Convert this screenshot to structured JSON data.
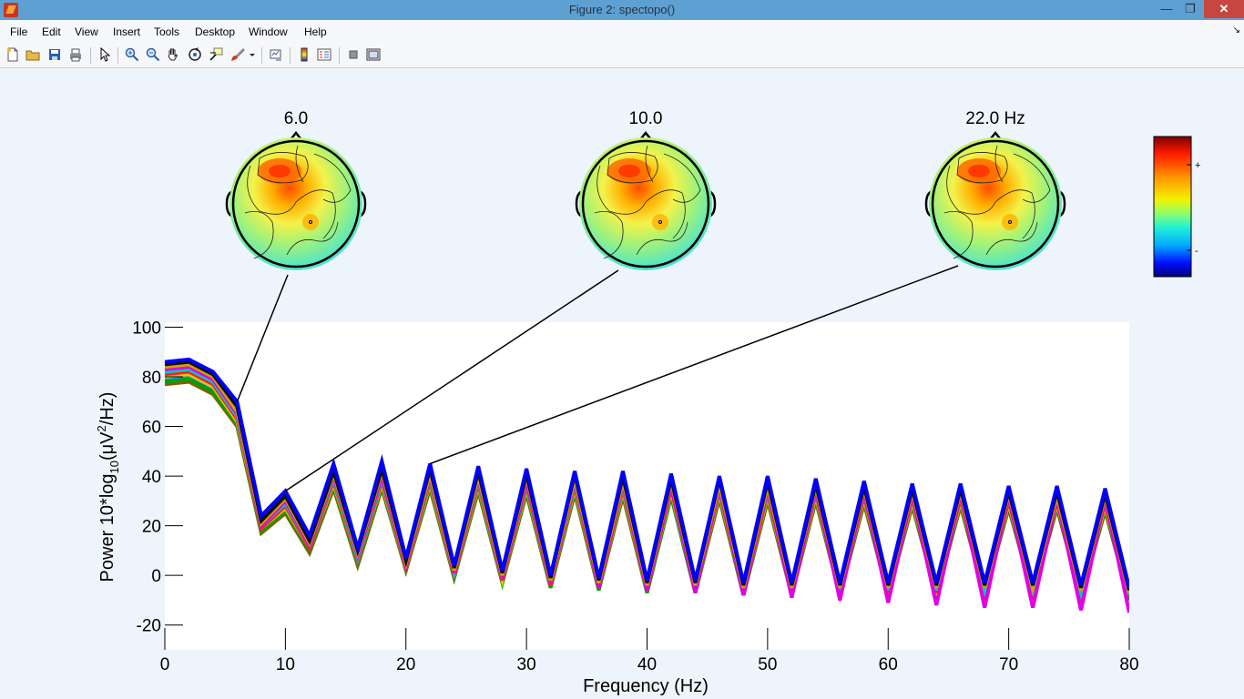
{
  "window": {
    "title": "Figure 2: spectopo()"
  },
  "menu": [
    "File",
    "Edit",
    "View",
    "Insert",
    "Tools",
    "Desktop",
    "Window",
    "Help"
  ],
  "toolbar": [
    "new-figure-icon",
    "open-file-icon",
    "save-icon",
    "print-icon",
    "pointer-icon",
    "zoom-in-icon",
    "zoom-out-icon",
    "pan-hand-icon",
    "rotate-3d-icon",
    "data-cursor-icon",
    "brush-icon",
    "brush-dropdown-icon",
    "link-plot-icon",
    "colorbar-icon",
    "legend-icon",
    "hide-plot-tools-icon",
    "show-plot-tools-icon"
  ],
  "colors": {
    "series": [
      "#0000ff",
      "#101010",
      "#d6a000",
      "#e000e0",
      "#00c8c8",
      "#ff2020",
      "#d7d000",
      "#00a000",
      "#2a7fff",
      "#8a5a00"
    ],
    "topo_outline": "#000000"
  },
  "topomaps": [
    {
      "label": "6.0",
      "freq": 6
    },
    {
      "label": "10.0",
      "freq": 10
    },
    {
      "label": "22.0 Hz",
      "freq": 22
    }
  ],
  "colorbar": {
    "plus_label": "+",
    "minus_label": "-"
  },
  "chart_data": {
    "type": "line",
    "xlabel": "Frequency (Hz)",
    "ylabel": "Power 10*log10(μV2/Hz)",
    "ylabel_parts": {
      "main": "Power 10*log",
      "sub": "10",
      "mid": "(μV",
      "sup": "2",
      "end": "/Hz)"
    },
    "xlim": [
      0,
      80
    ],
    "ylim": [
      -30,
      102
    ],
    "xticks": [
      0,
      10,
      20,
      30,
      40,
      50,
      60,
      70,
      80
    ],
    "yticks": [
      -20,
      0,
      20,
      40,
      60,
      80,
      100
    ],
    "x": [
      0,
      2,
      4,
      6,
      8,
      10,
      12,
      14,
      16,
      18,
      20,
      22,
      24,
      26,
      28,
      30,
      32,
      34,
      36,
      38,
      40,
      42,
      44,
      46,
      48,
      50,
      52,
      54,
      56,
      58,
      60,
      62,
      64,
      66,
      68,
      70,
      72,
      74,
      76,
      78,
      80
    ],
    "series": [
      {
        "values": [
          86,
          87,
          82,
          70,
          24,
          34,
          16,
          45,
          11,
          46,
          7,
          45,
          4,
          44,
          2,
          43,
          0,
          42,
          -1,
          42,
          -2,
          41,
          -2,
          40,
          -3,
          40,
          -3,
          39,
          -3,
          38,
          -3,
          37,
          -3,
          37,
          -3,
          36,
          -3,
          36,
          -4,
          35,
          -5
        ]
      },
      {
        "values": [
          85,
          86,
          81,
          68,
          22,
          32,
          14,
          42,
          10,
          43,
          6,
          43,
          3,
          42,
          1,
          41,
          -1,
          41,
          -2,
          40,
          -3,
          39,
          -3,
          39,
          -4,
          38,
          -4,
          37,
          -4,
          36,
          -4,
          35,
          -4,
          35,
          -4,
          34,
          -4,
          34,
          -5,
          33,
          -6
        ]
      },
      {
        "values": [
          84,
          85,
          80,
          66,
          21,
          31,
          13,
          41,
          9,
          42,
          5,
          41,
          2,
          40,
          0,
          40,
          -2,
          39,
          -3,
          38,
          -4,
          38,
          -4,
          37,
          -5,
          36,
          -5,
          36,
          -5,
          35,
          -5,
          34,
          -5,
          34,
          -5,
          33,
          -5,
          32,
          -6,
          32,
          -7
        ]
      },
      {
        "values": [
          83,
          84,
          79,
          65,
          20,
          30,
          12,
          40,
          8,
          40,
          4,
          40,
          1,
          39,
          -1,
          38,
          -3,
          38,
          -5,
          37,
          -6,
          36,
          -7,
          36,
          -8,
          35,
          -9,
          35,
          -10,
          34,
          -11,
          33,
          -12,
          33,
          -13,
          32,
          -13,
          31,
          -14,
          31,
          -15
        ]
      },
      {
        "values": [
          82,
          83,
          78,
          64,
          20,
          29,
          12,
          39,
          7,
          39,
          4,
          39,
          1,
          38,
          -1,
          37,
          -3,
          37,
          -4,
          36,
          -5,
          36,
          -5,
          35,
          -6,
          34,
          -6,
          34,
          -6,
          33,
          -6,
          32,
          -6,
          32,
          -6,
          31,
          -6,
          31,
          -7,
          30,
          -8
        ]
      },
      {
        "values": [
          81,
          82,
          77,
          63,
          19,
          28,
          11,
          38,
          6,
          38,
          3,
          38,
          0,
          37,
          -2,
          36,
          -4,
          36,
          -5,
          35,
          -6,
          35,
          -6,
          34,
          -7,
          33,
          -7,
          33,
          -7,
          32,
          -7,
          31,
          -7,
          31,
          -7,
          30,
          -7,
          30,
          -8,
          29,
          -9
        ]
      },
      {
        "values": [
          80,
          81,
          76,
          62,
          19,
          27,
          11,
          37,
          6,
          37,
          3,
          37,
          0,
          36,
          -2,
          35,
          -4,
          35,
          -5,
          34,
          -6,
          34,
          -6,
          33,
          -7,
          32,
          -7,
          32,
          -7,
          31,
          -7,
          30,
          -7,
          30,
          -7,
          29,
          -7,
          29,
          -8,
          28,
          -9
        ]
      },
      {
        "values": [
          78,
          79,
          74,
          61,
          18,
          26,
          10,
          36,
          5,
          36,
          2,
          36,
          -1,
          35,
          -3,
          34,
          -5,
          34,
          -6,
          33,
          -7,
          32,
          -7,
          32,
          -8,
          31,
          -8,
          31,
          -8,
          30,
          -8,
          29,
          -8,
          29,
          -8,
          28,
          -8,
          28,
          -9,
          27,
          -10
        ]
      },
      {
        "values": [
          79,
          80,
          75,
          62,
          18,
          27,
          10,
          37,
          5,
          37,
          3,
          37,
          0,
          36,
          -2,
          35,
          -4,
          35,
          -5,
          34,
          -6,
          33,
          -6,
          33,
          -7,
          32,
          -7,
          32,
          -7,
          31,
          -7,
          30,
          -7,
          30,
          -7,
          29,
          -7,
          29,
          -8,
          28,
          -9
        ]
      },
      {
        "values": [
          77,
          78,
          73,
          60,
          17,
          25,
          9,
          35,
          4,
          35,
          2,
          35,
          -1,
          34,
          -3,
          33,
          -5,
          33,
          -6,
          32,
          -7,
          32,
          -7,
          31,
          -8,
          30,
          -8,
          30,
          -8,
          29,
          -8,
          28,
          -8,
          28,
          -8,
          27,
          -8,
          27,
          -9,
          26,
          -10
        ]
      }
    ]
  }
}
